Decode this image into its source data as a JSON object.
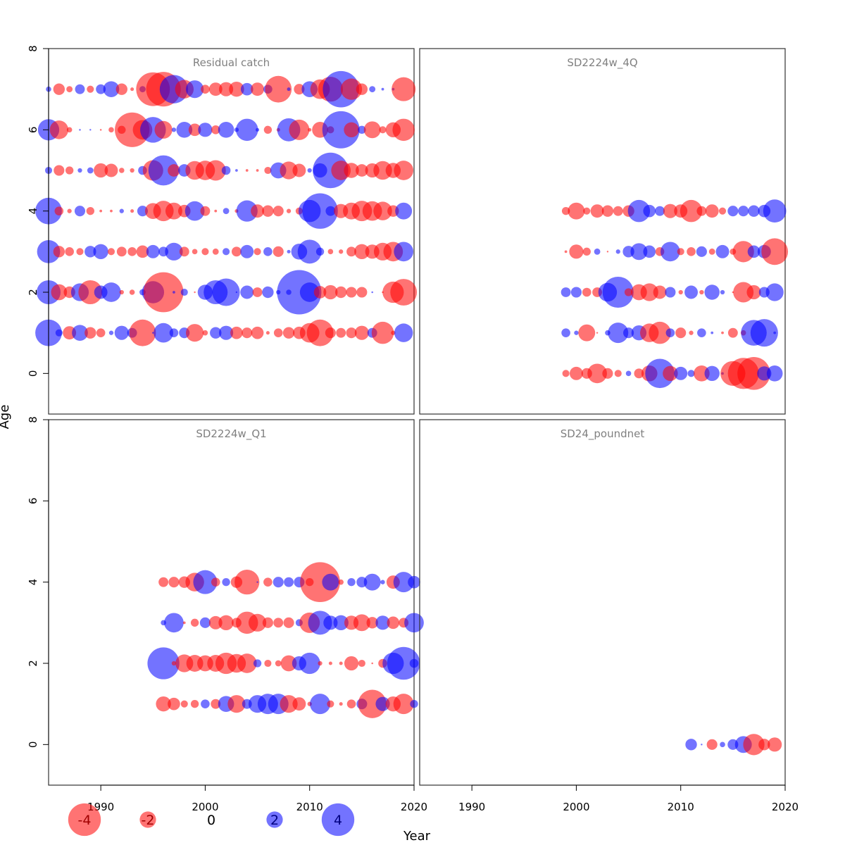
{
  "chart_data": {
    "type": "scatter",
    "subtype": "bubble",
    "xlabel": "Year",
    "ylabel": "Age",
    "xlim": [
      1985,
      2020
    ],
    "ylim": [
      -1,
      8
    ],
    "xticks": [
      1990,
      2000,
      2010,
      2020
    ],
    "yticks": [
      0,
      2,
      4,
      6,
      8
    ],
    "colors": {
      "positive": "#0000ff",
      "negative": "#ff0000",
      "opacity": 0.55
    },
    "legend": {
      "position": "bottom-left",
      "items": [
        {
          "label": "-4",
          "value": -4
        },
        {
          "label": "-2",
          "value": -2
        },
        {
          "label": "0",
          "value": 0
        },
        {
          "label": "2",
          "value": 2
        },
        {
          "label": "4",
          "value": 4
        }
      ]
    },
    "panels": [
      {
        "title": "Residual catch",
        "years": [
          1985,
          1986,
          1987,
          1988,
          1989,
          1990,
          1991,
          1992,
          1993,
          1994,
          1995,
          1996,
          1997,
          1998,
          1999,
          2000,
          2001,
          2002,
          2003,
          2004,
          2005,
          2006,
          2007,
          2008,
          2009,
          2010,
          2011,
          2012,
          2013,
          2014,
          2015,
          2016,
          2017,
          2018,
          2019
        ],
        "ages": [
          1,
          2,
          3,
          4,
          5,
          6,
          7
        ],
        "residuals": {
          "1": [
            3,
            0.8,
            -1.5,
            1.8,
            -1.3,
            -1,
            0.5,
            1.6,
            1.1,
            -3,
            0.2,
            2.2,
            1,
            1.2,
            -2,
            -0.6,
            1.3,
            1.6,
            -1.4,
            -1.2,
            -1.4,
            -0.4,
            -1,
            -1.3,
            -1.4,
            -2.2,
            -3,
            -1.2,
            -1.1,
            -1.2,
            -1.6,
            1.1,
            -2.5,
            -0.5,
            2.1
          ],
          "2": [
            2.7,
            -1.8,
            -1.3,
            2,
            -2.7,
            1.5,
            2.2,
            -0.5,
            -0.6,
            0.7,
            2.5,
            -4.5,
            0.3,
            0.8,
            -0.1,
            1.7,
            2.7,
            3.1,
            0.1,
            1.5,
            -1.1,
            1.3,
            0.5,
            0.6,
            5,
            2.2,
            -1.4,
            -1.6,
            -1.3,
            -1.2,
            -1.2,
            0.2,
            -0.2,
            -2.4,
            -3
          ],
          "3": [
            2.6,
            -1.3,
            -1,
            -0.8,
            1.3,
            1.7,
            -0.8,
            -1.1,
            -1,
            -1.4,
            1.5,
            1.1,
            2,
            -1.1,
            -0.6,
            -0.8,
            -0.7,
            0.8,
            -1.1,
            1.5,
            -0.8,
            1,
            -1.2,
            0.4,
            1.8,
            2.7,
            0.9,
            -0.6,
            -0.5,
            -1.1,
            -1.7,
            -1.6,
            -2,
            -2.2,
            2.2
          ],
          "4": [
            3,
            -1,
            -0.5,
            1.2,
            -0.9,
            -0.3,
            -0.3,
            0.5,
            -0.4,
            1.2,
            -1.8,
            -2.3,
            -1.9,
            -1.4,
            2.2,
            -1.1,
            -0.3,
            0.7,
            -0.4,
            2.4,
            -1.5,
            -1.3,
            -1.2,
            -0.5,
            -0.8,
            2.5,
            4,
            1.1,
            -1.6,
            -1.9,
            -2.3,
            -2.2,
            -2.1,
            -1.3,
            1.9
          ],
          "5": [
            0.8,
            -1.2,
            -0.9,
            0.5,
            0.7,
            -1.6,
            -1.5,
            -0.6,
            -0.5,
            1,
            -2.3,
            3.4,
            -1.4,
            1.4,
            -2.1,
            -2.2,
            -2.3,
            1,
            0.3,
            -0.3,
            -0.3,
            -0.8,
            1.8,
            -2,
            -1.5,
            0.5,
            1.6,
            4,
            -2.2,
            -1.7,
            -1.4,
            -1.6,
            -2.1,
            -1.7,
            -2.2
          ],
          "6": [
            2.4,
            -2.1,
            -0.6,
            0.2,
            0.1,
            -0.2,
            -0.6,
            -0.9,
            -3.9,
            -2.2,
            2.9,
            -2,
            0.5,
            1.8,
            -1.4,
            1.6,
            -1,
            1.8,
            0.5,
            2.5,
            0.4,
            -0.9,
            -0.4,
            2.6,
            -2.3,
            -0.4,
            -1.8,
            -0.8,
            4.2,
            -1.7,
            0.9,
            -1.9,
            -0.8,
            -1.7,
            -2.5
          ],
          "7": [
            0.6,
            -1.3,
            -0.7,
            1.1,
            -0.8,
            1.1,
            1.8,
            -1.3,
            -0.4,
            0.7,
            -3.8,
            -3.9,
            3.2,
            -2.1,
            2,
            -1,
            -1.5,
            -1.6,
            -1.7,
            1.4,
            -1.5,
            1,
            -3,
            0.4,
            -1.2,
            1.8,
            -2.2,
            -2.8,
            4.1,
            -2.4,
            -1.3,
            0.7,
            0.3,
            0.3,
            -2.7
          ]
        }
      },
      {
        "title": "SD2224w_4Q",
        "years": [
          1999,
          2000,
          2001,
          2002,
          2003,
          2004,
          2005,
          2006,
          2007,
          2008,
          2009,
          2010,
          2011,
          2012,
          2013,
          2014,
          2015,
          2016,
          2017,
          2018,
          2019
        ],
        "ages": [
          0,
          1,
          2,
          3,
          4
        ],
        "residuals": {
          "0": [
            -0.8,
            -1.5,
            -1.2,
            -2.2,
            -1.2,
            -0.8,
            0.6,
            -1.1,
            -1.8,
            3.3,
            -1.7,
            1.5,
            0.8,
            -1.8,
            1.7,
            0.3,
            -2.8,
            -3.5,
            -3.7,
            1.6,
            1.8
          ],
          "1": [
            1,
            0.5,
            -1.9,
            -0.1,
            0.6,
            2.3,
            1.2,
            1.7,
            -2.1,
            -2.5,
            1,
            -1.2,
            -0.5,
            1,
            0.3,
            -0.3,
            -1.1,
            -0.6,
            2.9,
            3.1,
            0.3
          ],
          "2": [
            1.1,
            1.2,
            -1,
            -1.1,
            2.1,
            3.5,
            -0.9,
            -1.8,
            -2,
            -1.5,
            1.2,
            -0.5,
            1.5,
            -0.5,
            1.7,
            0.5,
            -0.2,
            -2.3,
            -1.6,
            1.2,
            2
          ],
          "3": [
            -0.3,
            -1.6,
            -0.9,
            0.7,
            -0.1,
            0.5,
            1.3,
            1.9,
            1.4,
            -1,
            2.2,
            -0.8,
            -1,
            1.2,
            -0.7,
            1.5,
            -0.7,
            -2.4,
            1.4,
            1.5,
            -3
          ],
          "4": [
            -0.9,
            -1.9,
            -0.8,
            -1.5,
            -1.3,
            -1.1,
            -1.3,
            2.5,
            1.4,
            1.1,
            -1.6,
            -1.5,
            -2.5,
            -1.1,
            -1.5,
            -0.8,
            1.2,
            1.2,
            1.3,
            1.4,
            2.6
          ]
        }
      },
      {
        "title": "SD2224w_Q1",
        "years": [
          1996,
          1997,
          1998,
          1999,
          2000,
          2001,
          2002,
          2003,
          2004,
          2005,
          2006,
          2007,
          2008,
          2009,
          2010,
          2011,
          2012,
          2013,
          2014,
          2015,
          2016,
          2017,
          2018,
          2019,
          2020
        ],
        "ages": [
          1,
          2,
          3,
          4
        ],
        "residuals": {
          "1": [
            -1.7,
            -1.4,
            -0.8,
            -0.9,
            1,
            -1.1,
            1.8,
            -2,
            1.1,
            2,
            2.3,
            2.3,
            -2,
            -1.5,
            -0.5,
            2.3,
            -0.8,
            -0.4,
            -1,
            1.2,
            -3.2,
            1.6,
            -1.7,
            -2.3,
            0.9
          ],
          "2": [
            3.6,
            -0.5,
            -2,
            -1.9,
            -1.8,
            -1.9,
            -2.4,
            -2.1,
            -2.2,
            0.9,
            -0.8,
            -0.7,
            -1.8,
            1.6,
            2.4,
            -0.5,
            -0.4,
            -0.4,
            -1.6,
            -0.8,
            -0.2,
            -1,
            2.4,
            3.7,
            1
          ],
          "3": [
            0.6,
            2.2,
            -0.3,
            -0.9,
            1.2,
            -1.5,
            -1.7,
            -1.1,
            -2.5,
            -2,
            -1.2,
            -1.1,
            -1.2,
            0.8,
            -2.3,
            2.7,
            1.6,
            1.7,
            -1.6,
            -1.9,
            -1.3,
            1.6,
            -1.4,
            -1.1,
            2.2
          ],
          "4": [
            -1.1,
            -1.2,
            -1.3,
            -2.1,
            2.7,
            -1,
            0.9,
            -1.3,
            -2.8,
            0.1,
            -1,
            1.2,
            1.1,
            1.2,
            -0.9,
            -4.5,
            1.9,
            -0.6,
            0.9,
            1.2,
            1.9,
            0.5,
            -1.5,
            2.3,
            1.4
          ]
        }
      },
      {
        "title": "SD24_poundnet",
        "years": [
          2011,
          2012,
          2013,
          2014,
          2015,
          2016,
          2017,
          2018,
          2019
        ],
        "ages": [
          0
        ],
        "residuals": {
          "0": [
            1.3,
            0,
            -1.2,
            0.6,
            1.2,
            1.9,
            -2.4,
            -1.3,
            -1.6
          ]
        }
      }
    ]
  }
}
